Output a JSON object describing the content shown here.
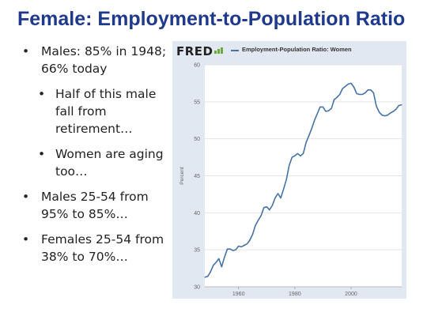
{
  "slide": {
    "title": "Female: Employment-to-Population Ratio",
    "bullets": [
      {
        "level": 1,
        "text": "Males: 85% in 1948; 66% today"
      },
      {
        "level": 2,
        "text": "Half of this male fall from retirement…"
      },
      {
        "level": 2,
        "text": "Women are aging too…"
      },
      {
        "level": 1,
        "text": "Males 25-54 from 95% to 85%…"
      },
      {
        "level": 1,
        "text": "Females 25-54 from 38% to 70%…"
      }
    ]
  },
  "fred": {
    "logo": "FRED",
    "legend": "Employment-Population Ratio: Women"
  },
  "colors": {
    "title": "#1f3a8c",
    "series": "#4572a7",
    "panel": "#e2e8f1"
  },
  "chart_data": {
    "type": "line",
    "title": "",
    "xlabel": "",
    "ylabel": "Percent",
    "xlim": [
      1948,
      2018
    ],
    "ylim": [
      30,
      60
    ],
    "yticks": [
      30,
      35,
      40,
      45,
      50,
      55,
      60
    ],
    "xticks": [
      1960,
      1980,
      2000
    ],
    "grid": true,
    "series": [
      {
        "name": "Employment-Population Ratio: Women",
        "x": [
          1948,
          1949,
          1950,
          1951,
          1952,
          1953,
          1954,
          1955,
          1956,
          1957,
          1958,
          1959,
          1960,
          1961,
          1962,
          1963,
          1964,
          1965,
          1966,
          1967,
          1968,
          1969,
          1970,
          1971,
          1972,
          1973,
          1974,
          1975,
          1976,
          1977,
          1978,
          1979,
          1980,
          1981,
          1982,
          1983,
          1984,
          1985,
          1986,
          1987,
          1988,
          1989,
          1990,
          1991,
          1992,
          1993,
          1994,
          1995,
          1996,
          1997,
          1998,
          1999,
          2000,
          2001,
          2002,
          2003,
          2004,
          2005,
          2006,
          2007,
          2008,
          2009,
          2010,
          2011,
          2012,
          2013,
          2014,
          2015,
          2016,
          2017,
          2018
        ],
        "values": [
          31.3,
          31.4,
          32.0,
          32.9,
          33.3,
          33.8,
          32.7,
          34.0,
          35.1,
          35.1,
          34.9,
          35.0,
          35.5,
          35.4,
          35.6,
          35.8,
          36.3,
          37.1,
          38.3,
          39.0,
          39.6,
          40.7,
          40.8,
          40.4,
          41.0,
          42.0,
          42.6,
          42.0,
          43.2,
          44.5,
          46.4,
          47.5,
          47.7,
          48.0,
          47.7,
          48.0,
          49.5,
          50.4,
          51.4,
          52.5,
          53.4,
          54.3,
          54.3,
          53.7,
          53.8,
          54.1,
          55.3,
          55.6,
          56.0,
          56.8,
          57.1,
          57.4,
          57.5,
          57.0,
          56.1,
          56.0,
          56.0,
          56.2,
          56.6,
          56.6,
          56.2,
          54.4,
          53.6,
          53.2,
          53.1,
          53.2,
          53.5,
          53.7,
          54.0,
          54.5,
          54.6
        ]
      }
    ]
  }
}
